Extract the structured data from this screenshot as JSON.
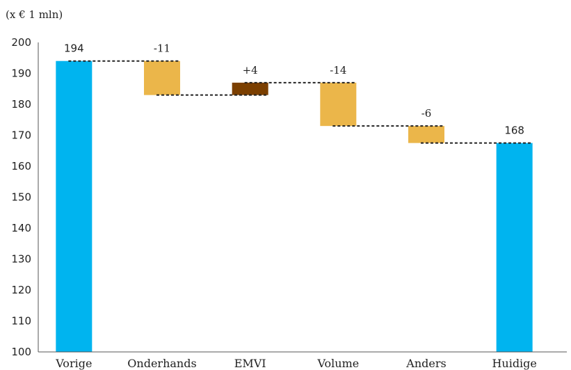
{
  "chart_data": {
    "type": "bar",
    "subtype": "waterfall",
    "unit_label": "(x € 1 mln)",
    "categories": [
      "Vorige",
      "Onderhands",
      "EMVI",
      "Volume",
      "Anders",
      "Huidige"
    ],
    "steps": [
      {
        "category": "Vorige",
        "kind": "total",
        "start": 100,
        "end": 194,
        "label": "194"
      },
      {
        "category": "Onderhands",
        "kind": "decrease",
        "start": 194,
        "end": 183,
        "label": "-11"
      },
      {
        "category": "EMVI",
        "kind": "increase",
        "start": 183,
        "end": 187,
        "label": "+4"
      },
      {
        "category": "Volume",
        "kind": "decrease",
        "start": 187,
        "end": 173,
        "label": "-14"
      },
      {
        "category": "Anders",
        "kind": "decrease",
        "start": 173,
        "end": 167.5,
        "label": "-6"
      },
      {
        "category": "Huidige",
        "kind": "total",
        "start": 100,
        "end": 167.5,
        "label": "168"
      }
    ],
    "ylim": [
      100,
      200
    ],
    "yticks": [
      100,
      110,
      120,
      130,
      140,
      150,
      160,
      170,
      180,
      190,
      200
    ],
    "xlabel": "",
    "ylabel": "",
    "grid": false,
    "legend": "none",
    "colors": {
      "total": "#00B4EF",
      "decrease": "#EBB64A",
      "increase": "#7B3F00",
      "connector": "#222222"
    }
  }
}
